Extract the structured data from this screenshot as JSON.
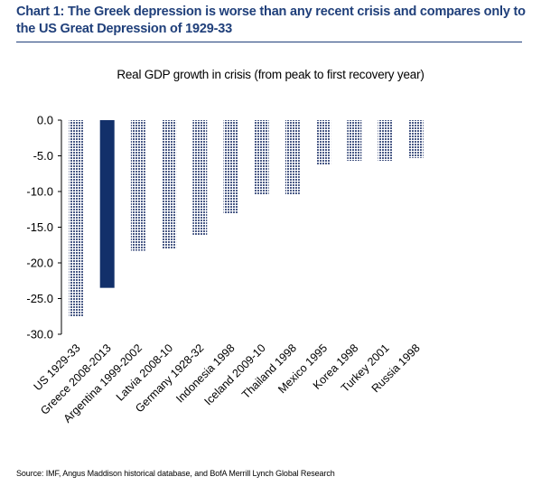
{
  "header": {
    "title": "Chart 1: The Greek depression is worse than any recent crisis and compares only to the US Great Depression of 1929-33"
  },
  "chart_data": {
    "type": "bar",
    "title": "Real GDP growth in crisis (from peak to first recovery year)",
    "xlabel": "",
    "ylabel": "",
    "categories": [
      "US 1929-33",
      "Greece 2008-2013",
      "Argentina 1999-2002",
      "Latvia 2008-10",
      "Germany 1928-32",
      "Indonesia 1998",
      "Iceland 2009-10",
      "Thailand 1998",
      "Mexico 1995",
      "Korea 1998",
      "Turkey 2001",
      "Russia 1998"
    ],
    "values": [
      -27.5,
      -23.5,
      -18.3,
      -18.0,
      -16.2,
      -13.1,
      -10.5,
      -10.5,
      -6.3,
      -5.7,
      -5.7,
      -5.3
    ],
    "ylim": [
      -30,
      0
    ],
    "yticks": [
      0,
      -5,
      -10,
      -15,
      -20,
      -25,
      -30
    ],
    "ytick_labels": [
      "0.0",
      "-5.0",
      "-10.0",
      "-15.0",
      "-20.0",
      "-25.0",
      "-30.0"
    ],
    "grid": false,
    "legend": "none",
    "highlight_index": 1
  },
  "colors": {
    "title_text": "#1f3f7a",
    "rule": "#1f3f7a",
    "bar_highlight": "#12306a",
    "bar_pattern": "#4a5a86",
    "axis": "#000000"
  },
  "footer": {
    "source": "Source: IMF, Angus Maddison historical database, and BofA Merrill Lynch Global Research"
  }
}
